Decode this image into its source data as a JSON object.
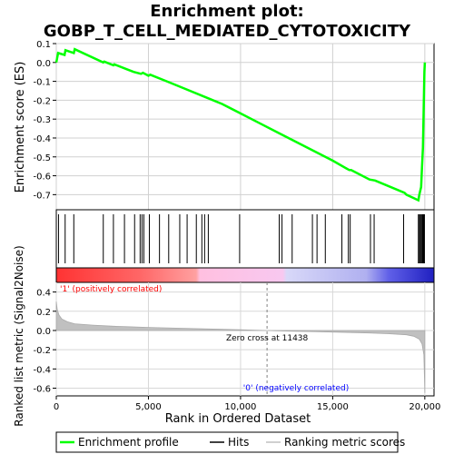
{
  "title_line1": "Enrichment plot:",
  "title_line2": "GOBP_T_CELL_MEDIATED_CYTOTOXICITY",
  "colors": {
    "es_line": "#00ff00",
    "hits": "#000000",
    "metric_fill": "#c0c0c0",
    "positive_label": "#ff0000",
    "negative_label": "#0000ff",
    "zero_cross_line": "#808080"
  },
  "chart_data": [
    {
      "type": "line",
      "ylabel": "Enrichment score (ES)",
      "xlim": [
        0,
        20500
      ],
      "ylim": [
        -0.78,
        0.1
      ],
      "yticks": [
        0.1,
        0.0,
        -0.1,
        -0.2,
        -0.3,
        -0.4,
        -0.5,
        -0.6,
        -0.7
      ],
      "ytick_labels": [
        "0.1",
        "0.0",
        "-0.1",
        "-0.2",
        "-0.3",
        "-0.4",
        "-0.5",
        "-0.6",
        "-0.7"
      ],
      "grid": true,
      "series": [
        {
          "x": [
            0,
            100,
            450,
            500,
            950,
            1000,
            2550,
            2600,
            3100,
            3150,
            3800,
            4200,
            4600,
            4700,
            5000,
            5100,
            6000,
            7000,
            8000,
            9000,
            10000,
            11000,
            12000,
            13000,
            14000,
            15000,
            15900,
            16000,
            17000,
            17300,
            18900,
            19000,
            19650,
            19700,
            19800,
            19850,
            19900,
            19920,
            19940,
            19960,
            19980,
            20000
          ],
          "y": [
            0.0,
            0.05,
            0.04,
            0.065,
            0.05,
            0.07,
            0.0,
            0.005,
            -0.015,
            -0.01,
            -0.035,
            -0.05,
            -0.06,
            -0.055,
            -0.07,
            -0.065,
            -0.1,
            -0.14,
            -0.18,
            -0.22,
            -0.27,
            -0.32,
            -0.37,
            -0.42,
            -0.47,
            -0.52,
            -0.57,
            -0.57,
            -0.62,
            -0.625,
            -0.69,
            -0.7,
            -0.73,
            -0.7,
            -0.66,
            -0.55,
            -0.45,
            -0.35,
            -0.25,
            -0.15,
            -0.05,
            0.0
          ]
        }
      ]
    },
    {
      "type": "hits",
      "hit_positions": [
        120,
        480,
        950,
        2550,
        3100,
        3700,
        4250,
        4550,
        4650,
        4750,
        5050,
        5600,
        6100,
        6700,
        7100,
        7600,
        7900,
        8050,
        8250,
        9950,
        12100,
        12250,
        12800,
        13900,
        14150,
        14600,
        15500,
        15850,
        15950,
        17050,
        17250,
        18850,
        19650,
        19700,
        19750,
        19800,
        19850,
        19880,
        19910,
        19940,
        19960,
        19980
      ]
    },
    {
      "type": "area",
      "ylabel": "Ranked list metric (Signal2Noise)",
      "xlabel": "Rank in Ordered Dataset",
      "xlim": [
        0,
        20500
      ],
      "ylim": [
        -0.68,
        0.5
      ],
      "xticks": [
        0,
        5000,
        10000,
        15000,
        20000
      ],
      "xtick_labels": [
        "0",
        "5,000",
        "10,000",
        "15,000",
        "20,000"
      ],
      "yticks": [
        0.4,
        0.2,
        0.0,
        -0.2,
        -0.4,
        -0.6
      ],
      "ytick_labels": [
        "0.4",
        "0.2",
        "0.0",
        "-0.2",
        "-0.4",
        "-0.6"
      ],
      "x": [
        0,
        50,
        150,
        300,
        600,
        1000,
        2000,
        3000,
        4000,
        5000,
        6000,
        7000,
        8000,
        9000,
        10000,
        11000,
        11438,
        12000,
        13000,
        14000,
        15000,
        16000,
        17000,
        18000,
        19000,
        19400,
        19700,
        19850,
        19950,
        20000
      ],
      "values": [
        0.3,
        0.22,
        0.16,
        0.12,
        0.09,
        0.07,
        0.055,
        0.045,
        0.038,
        0.032,
        0.027,
        0.022,
        0.017,
        0.012,
        0.007,
        0.002,
        0.0,
        -0.004,
        -0.008,
        -0.012,
        -0.016,
        -0.021,
        -0.026,
        -0.033,
        -0.045,
        -0.06,
        -0.09,
        -0.14,
        -0.25,
        -0.65
      ],
      "zero_cross_label": "Zero cross at 11438",
      "zero_cross_x": 11438,
      "positive_label": "'1' (positively correlated)",
      "negative_label": "'0' (negatively correlated)"
    }
  ],
  "legend": {
    "items": [
      {
        "label": "Enrichment profile",
        "color": "#00ff00"
      },
      {
        "label": "Hits",
        "color": "#000000"
      },
      {
        "label": "Ranking metric scores",
        "color": "#c0c0c0"
      }
    ]
  }
}
